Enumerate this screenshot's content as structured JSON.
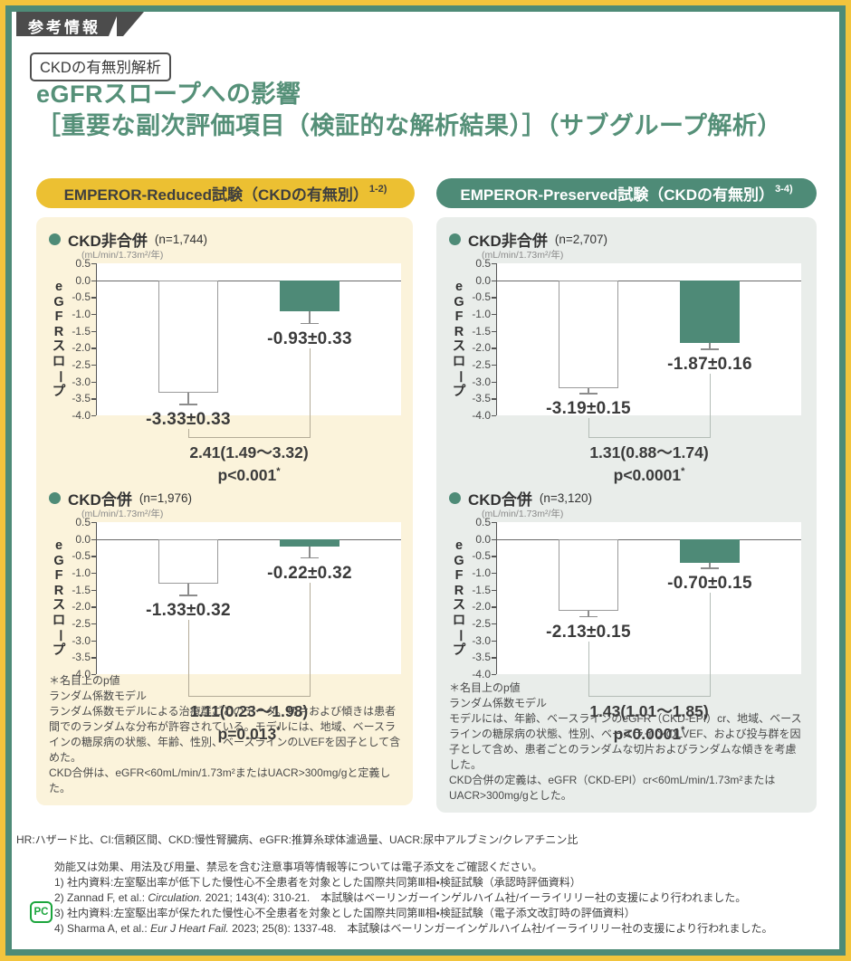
{
  "tag": "参考情報",
  "analysis_badge": "CKDの有無別解析",
  "title": {
    "line1": "eGFRスロープへの影響",
    "line2": "［重要な副次評価項目（検証的な解析結果）］（サブグループ解析）"
  },
  "colors": {
    "accent_teal": "#4E8B77",
    "accent_yellow": "#ECC032",
    "frame_yellow": "#F2C43D",
    "panel_cream": "#FBF3DB",
    "panel_gray": "#E9EDEA",
    "tag_gray": "#4C4C4C",
    "pc_green": "#1BA53C"
  },
  "panels": [
    {
      "key": "reduced",
      "pill": {
        "label": "EMPEROR-Reduced試験（CKDの有無別）",
        "sup": "1-2)"
      },
      "footnotes": [
        "＊名目上のp値",
        "ランダム係数モデル",
        "ランダム係数モデルによる治療群ごとのデータ。切片および傾きは患者間でのランダムな分布が許容されている。モデルには、地域、ベースラインの糖尿病の状態、年齢、性別、ベースラインのLVEFを因子として含めた。",
        "CKD合併は、eGFR<60mL/min/1.73m²またはUACR>300mg/gと定義した。"
      ]
    },
    {
      "key": "preserved",
      "pill": {
        "label": "EMPEROR-Preserved試験（CKDの有無別）",
        "sup": "3-4)"
      },
      "footnotes": [
        "＊名目上のp値",
        "ランダム係数モデル",
        "モデルには、年齢、ベースラインのeGFR（CKD-EPI）cr、地域、ベースラインの糖尿病の状態、性別、ベースラインのLVEF、および投与群を因子として含め、患者ごとのランダムな切片およびランダムな傾きを考慮した。",
        "CKD合併の定義は、eGFR（CKD-EPI）cr<60mL/min/1.73m²またはUACR>300mg/gとした。"
      ]
    }
  ],
  "chart_data": [
    {
      "type": "bar",
      "panel": "reduced",
      "subgroup": "CKD非合併",
      "n": "(n=1,744)",
      "unit": "(mL/min/1.73m²/年)",
      "ylabel": "eGFRスロープ",
      "ylim": [
        -4.0,
        0.5
      ],
      "yticks": [
        "0.5",
        "0.0",
        "-0.5",
        "-1.0",
        "-1.5",
        "-2.0",
        "-2.5",
        "-3.0",
        "-3.5",
        "-4.0"
      ],
      "bars": [
        {
          "fill": "white",
          "value": -3.33,
          "se": 0.33,
          "label": "-3.33±0.33"
        },
        {
          "fill": "teal",
          "value": -0.93,
          "se": 0.33,
          "label": "-0.93±0.33"
        }
      ],
      "difference": "2.41(1.49～3.32)",
      "p_value": "p<0.001*"
    },
    {
      "type": "bar",
      "panel": "reduced",
      "subgroup": "CKD合併",
      "n": "(n=1,976)",
      "unit": "(mL/min/1.73m²/年)",
      "ylabel": "eGFRスロープ",
      "ylim": [
        -4.0,
        0.5
      ],
      "yticks": [
        "0.5",
        "0.0",
        "-0.5",
        "-1.0",
        "-1.5",
        "-2.0",
        "-2.5",
        "-3.0",
        "-3.5",
        "-4.0"
      ],
      "bars": [
        {
          "fill": "white",
          "value": -1.33,
          "se": 0.32,
          "label": "-1.33±0.32"
        },
        {
          "fill": "teal",
          "value": -0.22,
          "se": 0.32,
          "label": "-0.22±0.32"
        }
      ],
      "difference": "1.11(0.23～1.98)",
      "p_value": "p=0.013*"
    },
    {
      "type": "bar",
      "panel": "preserved",
      "subgroup": "CKD非合併",
      "n": "(n=2,707)",
      "unit": "(mL/min/1.73m²/年)",
      "ylabel": "eGFRスロープ",
      "ylim": [
        -4.0,
        0.5
      ],
      "yticks": [
        "0.5",
        "0.0",
        "-0.5",
        "-1.0",
        "-1.5",
        "-2.0",
        "-2.5",
        "-3.0",
        "-3.5",
        "-4.0"
      ],
      "bars": [
        {
          "fill": "white",
          "value": -3.19,
          "se": 0.15,
          "label": "-3.19±0.15"
        },
        {
          "fill": "teal",
          "value": -1.87,
          "se": 0.16,
          "label": "-1.87±0.16"
        }
      ],
      "difference": "1.31(0.88～1.74)",
      "p_value": "p<0.0001*"
    },
    {
      "type": "bar",
      "panel": "preserved",
      "subgroup": "CKD合併",
      "n": "(n=3,120)",
      "unit": "(mL/min/1.73m²/年)",
      "ylabel": "eGFRスロープ",
      "ylim": [
        -4.0,
        0.5
      ],
      "yticks": [
        "0.5",
        "0.0",
        "-0.5",
        "-1.0",
        "-1.5",
        "-2.0",
        "-2.5",
        "-3.0",
        "-3.5",
        "-4.0"
      ],
      "bars": [
        {
          "fill": "white",
          "value": -2.13,
          "se": 0.15,
          "label": "-2.13±0.15"
        },
        {
          "fill": "teal",
          "value": -0.7,
          "se": 0.15,
          "label": "-0.70±0.15"
        }
      ],
      "difference": "1.43(1.01～1.85)",
      "p_value": "p<0.0001*"
    }
  ],
  "footer": {
    "abbreviations": "HR:ハザード比、CI:信頼区間、CKD:慢性腎臓病、eGFR:推算糸球体濾過量、UACR:尿中アルブミン/クレアチニン比",
    "notice": "効能又は効果、用法及び用量、禁忌を含む注意事項等情報等については電子添文をご確認ください。",
    "pc_icon_label": "PC",
    "references": [
      {
        "pre": "1) 社内資料:左室駆出率が低下した慢性心不全患者を対象とした国際共同第Ⅲ相・検証試験（承認時評価資料）",
        "italic": "",
        "post": ""
      },
      {
        "pre": "2) Zannad F, et al.: ",
        "italic": "Circulation.",
        "post": " 2021; 143(4): 310-21.　本試験はベーリンガーインゲルハイム社/イーライリリー社の支援により行われました。"
      },
      {
        "pre": "3) 社内資料:左室駆出率が保たれた慢性心不全患者を対象とした国際共同第Ⅲ相・検証試験（電子添文改訂時の評価資料）",
        "italic": "",
        "post": ""
      },
      {
        "pre": "4) Sharma A, et al.: ",
        "italic": "Eur J Heart Fail.",
        "post": " 2023; 25(8): 1337-48.　本試験はベーリンガーインゲルハイム社/イーライリリー社の支援により行われました。"
      }
    ]
  }
}
